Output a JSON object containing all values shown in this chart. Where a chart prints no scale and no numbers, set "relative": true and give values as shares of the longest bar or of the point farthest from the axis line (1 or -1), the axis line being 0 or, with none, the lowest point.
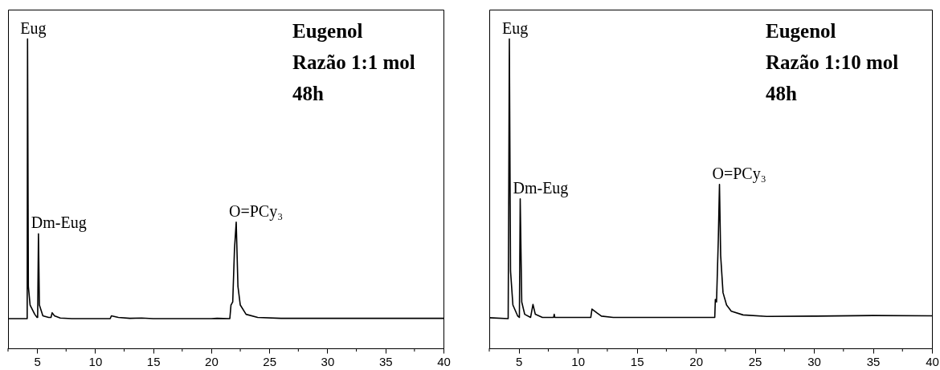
{
  "chart_data": [
    {
      "type": "line",
      "relative": true,
      "xlim": [
        2.5,
        40
      ],
      "xticks": [
        {
          "value": 2.5,
          "label": null
        },
        5,
        {
          "value": 7.5,
          "label": null
        },
        10,
        {
          "value": 12.5,
          "label": null
        },
        15,
        {
          "value": 17.5,
          "label": null
        },
        20,
        {
          "value": 22.5,
          "label": null
        },
        25,
        {
          "value": 27.5,
          "label": null
        },
        30,
        {
          "value": 32.5,
          "label": null
        },
        35,
        {
          "value": 37.5,
          "label": null
        },
        40
      ],
      "grid": false,
      "series": [
        {
          "color": "#000000",
          "x": [
            2.5,
            4.15,
            4.18,
            4.25,
            4.4,
            4.8,
            5.0,
            5.05,
            5.12,
            5.2,
            5.5,
            6.0,
            6.2,
            6.3,
            6.5,
            7,
            8,
            11.3,
            11.4,
            12,
            13,
            14,
            15,
            20,
            20.5,
            21.6,
            21.7,
            21.85,
            22.0,
            22.15,
            22.3,
            22.5,
            23,
            24,
            26,
            40
          ],
          "values": [
            0.096,
            0.096,
            1.0,
            0.2,
            0.14,
            0.11,
            0.1,
            0.1,
            0.37,
            0.14,
            0.105,
            0.1,
            0.1,
            0.115,
            0.105,
            0.098,
            0.096,
            0.096,
            0.105,
            0.1,
            0.097,
            0.098,
            0.096,
            0.096,
            0.097,
            0.096,
            0.14,
            0.15,
            0.32,
            0.408,
            0.2,
            0.14,
            0.11,
            0.1,
            0.097,
            0.097
          ]
        }
      ],
      "annotations": [
        "Eugenol",
        "Razão 1:1 mol",
        "48h",
        {
          "text": "Eug",
          "x": 4.18,
          "y": 1.0
        },
        {
          "text": "Dm-Eug",
          "x": 5.12,
          "y": 0.37
        },
        {
          "text": "O=PCy₃",
          "x": 22.15,
          "y": 0.408
        }
      ]
    },
    {
      "type": "line",
      "relative": true,
      "xlim": [
        2.5,
        40
      ],
      "xticks": [
        {
          "value": 2.5,
          "label": null
        },
        5,
        {
          "value": 7.5,
          "label": null
        },
        10,
        {
          "value": 12.5,
          "label": null
        },
        15,
        {
          "value": 17.5,
          "label": null
        },
        20,
        {
          "value": 22.5,
          "label": null
        },
        25,
        {
          "value": 27.5,
          "label": null
        },
        30,
        {
          "value": 32.5,
          "label": null
        },
        35,
        {
          "value": 37.5,
          "label": null
        },
        40
      ],
      "grid": false,
      "series": [
        {
          "color": "#000000",
          "x": [
            2.5,
            4.1,
            4.15,
            4.2,
            4.3,
            4.5,
            4.9,
            5.05,
            5.12,
            5.25,
            5.5,
            6.0,
            6.2,
            6.4,
            7,
            7.95,
            8.0,
            8.05,
            11.1,
            11.2,
            11.6,
            12,
            13,
            20,
            21.6,
            21.65,
            21.75,
            21.9,
            22.0,
            22.1,
            22.3,
            22.6,
            23,
            24,
            26,
            30,
            35,
            40
          ],
          "values": [
            0.099,
            0.096,
            0.5,
            1.0,
            0.25,
            0.14,
            0.105,
            0.1,
            0.483,
            0.15,
            0.11,
            0.1,
            0.142,
            0.11,
            0.1,
            0.1,
            0.11,
            0.1,
            0.1,
            0.127,
            0.115,
            0.104,
            0.1,
            0.1,
            0.1,
            0.158,
            0.15,
            0.35,
            0.53,
            0.3,
            0.18,
            0.14,
            0.12,
            0.108,
            0.103,
            0.104,
            0.106,
            0.105
          ]
        }
      ],
      "annotations": [
        "Eugenol",
        "Razão 1:10 mol",
        "48h",
        {
          "text": "Eug",
          "x": 4.2,
          "y": 1.0
        },
        {
          "text": "Dm-Eug",
          "x": 5.12,
          "y": 0.483
        },
        {
          "text": "O=PCy₃",
          "x": 22.0,
          "y": 0.53
        }
      ]
    }
  ]
}
